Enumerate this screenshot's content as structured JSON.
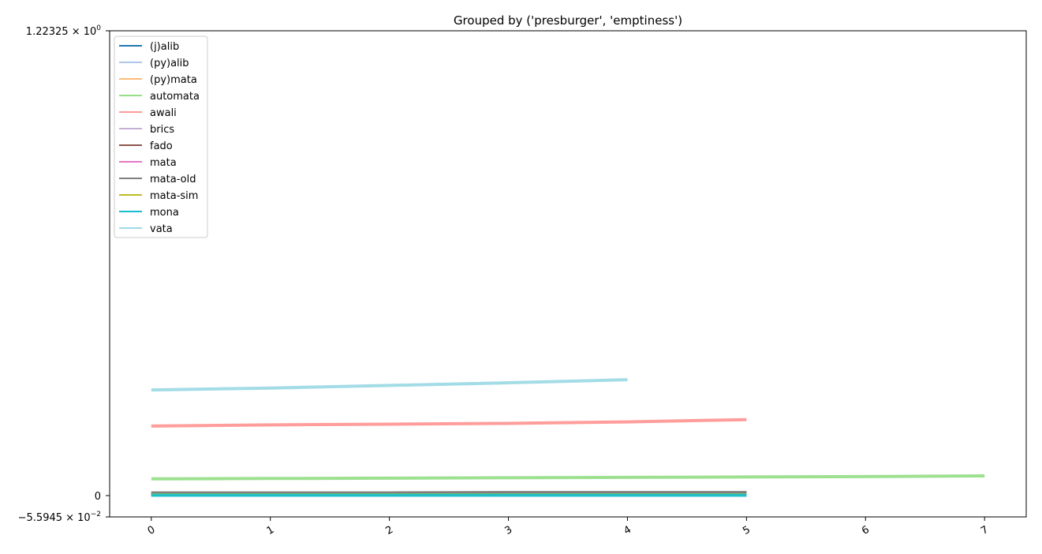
{
  "chart_data": {
    "type": "line",
    "title": "Grouped by ('presburger', 'emptiness')",
    "xlabel": "",
    "ylabel": "",
    "x_ticks": [
      "0",
      "1",
      "2",
      "3",
      "4",
      "5",
      "6",
      "7"
    ],
    "xlim": [
      -0.35,
      7.35
    ],
    "ylim": [
      -0.055945,
      1.22325
    ],
    "y_tick_labels": {
      "top": "1.22325 × 10",
      "top_exp": "0",
      "zero": "0",
      "bottom": "−5.5945 × 10",
      "bottom_exp": "−2"
    },
    "y_tick_values": [
      1.22325,
      0,
      -0.055945
    ],
    "legend_position": "upper left",
    "grid": false,
    "series": [
      {
        "name": "(j)alib",
        "color": "#1f77b4",
        "x": [
          0,
          1,
          2,
          3,
          4,
          5
        ],
        "y": [
          0.004,
          0.004,
          0.004,
          0.004,
          0.004,
          0.004
        ]
      },
      {
        "name": "(py)alib",
        "color": "#aec7e8",
        "x": [
          0,
          1,
          2,
          3,
          4,
          5
        ],
        "y": [
          0.003,
          0.003,
          0.003,
          0.003,
          0.003,
          0.003
        ]
      },
      {
        "name": "(py)mata",
        "color": "#ffbb78",
        "x": [
          0,
          1,
          2,
          3,
          4,
          5
        ],
        "y": [
          0.003,
          0.003,
          0.003,
          0.003,
          0.003,
          0.003
        ]
      },
      {
        "name": "automata",
        "color": "#98df8a",
        "x": [
          0,
          1,
          2,
          3,
          4,
          5,
          6,
          7
        ],
        "y": [
          0.044,
          0.045,
          0.046,
          0.047,
          0.048,
          0.049,
          0.05,
          0.052
        ]
      },
      {
        "name": "awali",
        "color": "#ff9896",
        "x": [
          0,
          1,
          2,
          3,
          4,
          5
        ],
        "y": [
          0.183,
          0.186,
          0.188,
          0.19,
          0.194,
          0.2
        ]
      },
      {
        "name": "brics",
        "color": "#c5b0d5",
        "x": [
          0,
          1,
          2,
          3,
          4,
          5
        ],
        "y": [
          0.005,
          0.005,
          0.006,
          0.006,
          0.006,
          0.007
        ]
      },
      {
        "name": "fado",
        "color": "#8c564b",
        "x": [
          0,
          1,
          2,
          3,
          4,
          5
        ],
        "y": [
          0.006,
          0.006,
          0.006,
          0.007,
          0.007,
          0.007
        ]
      },
      {
        "name": "mata",
        "color": "#e377c2",
        "x": [
          0,
          1,
          2,
          3,
          4,
          5
        ],
        "y": [
          0.002,
          0.002,
          0.002,
          0.002,
          0.002,
          0.002
        ]
      },
      {
        "name": "mata-old",
        "color": "#7f7f7f",
        "x": [
          0,
          1,
          2,
          3,
          4,
          5
        ],
        "y": [
          0.007,
          0.007,
          0.007,
          0.008,
          0.008,
          0.008
        ]
      },
      {
        "name": "mata-sim",
        "color": "#bcbd22",
        "x": [
          0,
          1,
          2,
          3,
          4,
          5
        ],
        "y": [
          0.002,
          0.002,
          0.002,
          0.002,
          0.002,
          0.002
        ]
      },
      {
        "name": "mona",
        "color": "#17becf",
        "x": [
          0,
          1,
          2,
          3,
          4,
          5
        ],
        "y": [
          0.001,
          0.001,
          0.001,
          0.001,
          0.001,
          0.001
        ]
      },
      {
        "name": "vata",
        "color": "#9edae5",
        "x": [
          0,
          1,
          2,
          3,
          4
        ],
        "y": [
          0.278,
          0.283,
          0.29,
          0.297,
          0.305
        ]
      }
    ]
  }
}
